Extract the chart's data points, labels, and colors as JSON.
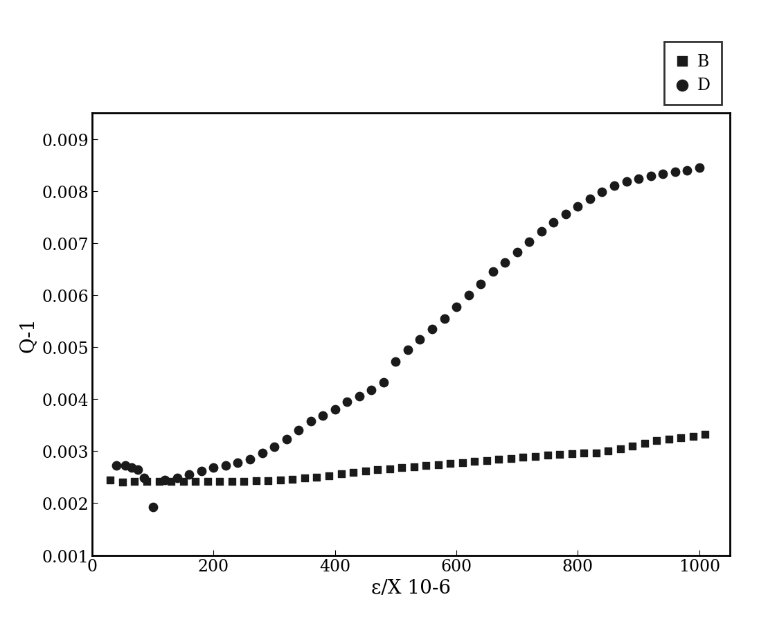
{
  "B_x": [
    30,
    50,
    70,
    90,
    110,
    130,
    150,
    170,
    190,
    210,
    230,
    250,
    270,
    290,
    310,
    330,
    350,
    370,
    390,
    410,
    430,
    450,
    470,
    490,
    510,
    530,
    550,
    570,
    590,
    610,
    630,
    650,
    670,
    690,
    710,
    730,
    750,
    770,
    790,
    810,
    830,
    850,
    870,
    890,
    910,
    930,
    950,
    970,
    990,
    1010
  ],
  "B_y": [
    0.00245,
    0.0024,
    0.00242,
    0.00242,
    0.00242,
    0.00242,
    0.00242,
    0.00242,
    0.00242,
    0.00242,
    0.00242,
    0.00242,
    0.00243,
    0.00243,
    0.00244,
    0.00246,
    0.00248,
    0.0025,
    0.00253,
    0.00256,
    0.00259,
    0.00262,
    0.00264,
    0.00266,
    0.00268,
    0.0027,
    0.00272,
    0.00274,
    0.00276,
    0.00278,
    0.0028,
    0.00282,
    0.00284,
    0.00286,
    0.00288,
    0.0029,
    0.00292,
    0.00294,
    0.00295,
    0.00296,
    0.00297,
    0.003,
    0.00305,
    0.0031,
    0.00315,
    0.0032,
    0.00323,
    0.00326,
    0.00329,
    0.00332
  ],
  "D_x": [
    40,
    55,
    65,
    75,
    85,
    100,
    120,
    140,
    160,
    180,
    200,
    220,
    240,
    260,
    280,
    300,
    320,
    340,
    360,
    380,
    400,
    420,
    440,
    460,
    480,
    500,
    520,
    540,
    560,
    580,
    600,
    620,
    640,
    660,
    680,
    700,
    720,
    740,
    760,
    780,
    800,
    820,
    840,
    860,
    880,
    900,
    920,
    940,
    960,
    980,
    1000
  ],
  "D_y": [
    0.00272,
    0.00272,
    0.00268,
    0.00265,
    0.00248,
    0.00193,
    0.00244,
    0.00248,
    0.00255,
    0.00262,
    0.00268,
    0.00273,
    0.00278,
    0.00285,
    0.00296,
    0.00308,
    0.00323,
    0.0034,
    0.00358,
    0.00368,
    0.0038,
    0.00395,
    0.00405,
    0.00418,
    0.00432,
    0.00472,
    0.00495,
    0.00515,
    0.00535,
    0.00555,
    0.00578,
    0.006,
    0.00622,
    0.00645,
    0.00663,
    0.00683,
    0.00703,
    0.00722,
    0.0074,
    0.00756,
    0.0077,
    0.00785,
    0.00798,
    0.0081,
    0.00818,
    0.00824,
    0.00829,
    0.00833,
    0.00837,
    0.0084,
    0.00845
  ],
  "xlabel": "ε/X 10-6",
  "ylabel": "Q-1",
  "xlim": [
    0,
    1050
  ],
  "ylim": [
    0.001,
    0.0095
  ],
  "xticks": [
    0,
    200,
    400,
    600,
    800,
    1000
  ],
  "yticks": [
    0.001,
    0.002,
    0.003,
    0.004,
    0.005,
    0.006,
    0.007,
    0.008,
    0.009
  ],
  "legend_labels": [
    "B",
    "D"
  ],
  "marker_B": "s",
  "marker_D": "o",
  "color": "#1a1a1a",
  "bg_color": "#ffffff",
  "fontsize_axis": 20,
  "fontsize_tick": 17,
  "fontsize_legend": 17
}
